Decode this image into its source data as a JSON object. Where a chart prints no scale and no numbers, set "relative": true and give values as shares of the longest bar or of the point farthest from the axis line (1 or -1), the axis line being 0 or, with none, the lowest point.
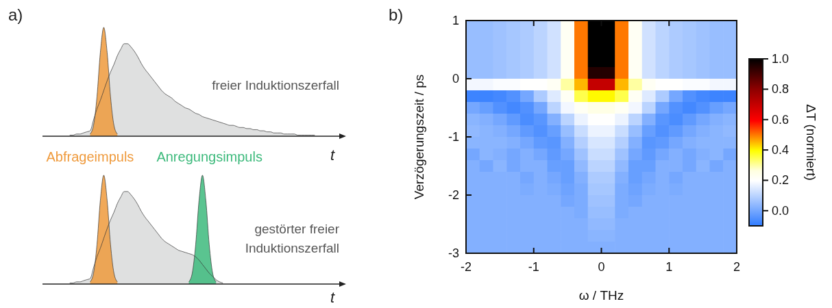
{
  "chart_data": [
    {
      "type": "area",
      "title": "a)",
      "xlabel": "t",
      "relative": true,
      "categories": [
        null,
        null,
        null,
        null,
        null,
        null,
        null,
        null,
        null,
        null,
        null,
        null,
        null,
        null,
        null,
        null,
        null,
        null,
        null,
        null,
        null,
        null,
        null,
        null,
        null,
        null,
        null,
        null,
        null,
        null,
        null,
        null,
        null,
        null,
        null,
        null,
        null,
        null,
        null,
        null,
        null,
        null,
        null,
        null,
        null,
        null,
        null,
        null,
        null,
        null,
        null,
        null,
        null,
        null,
        null,
        null,
        null,
        null,
        null,
        null,
        null,
        null,
        null,
        null,
        null,
        null,
        null,
        null,
        null,
        null,
        null,
        null,
        null,
        null,
        null,
        null,
        null,
        null,
        null,
        null,
        null,
        null,
        null,
        null,
        null,
        null,
        null,
        null,
        null
      ],
      "series": [
        {
          "color": "#d9dadb",
          "values": [
            null,
            null,
            null,
            null,
            null,
            null,
            null,
            null,
            0.01,
            0.01,
            0.02,
            0.02,
            0.03,
            0.04,
            0.05,
            0.15,
            0.25,
            0.33,
            0.42,
            0.51,
            0.59,
            0.66,
            0.74,
            0.8,
            0.85,
            0.85,
            0.82,
            0.78,
            0.73,
            0.67,
            0.62,
            0.58,
            0.54,
            0.5,
            0.46,
            0.42,
            0.39,
            0.37,
            0.35,
            0.32,
            0.3,
            0.28,
            0.26,
            0.25,
            0.23,
            0.21,
            0.2,
            0.18,
            0.17,
            0.16,
            0.15,
            0.14,
            0.13,
            0.12,
            0.11,
            0.1,
            0.1,
            0.09,
            0.08,
            0.08,
            0.07,
            0.07,
            0.06,
            0.06,
            0.05,
            0.05,
            0.04,
            0.04,
            0.03,
            0.03,
            0.03,
            0.02,
            0.02,
            0.02,
            0.02,
            0.01,
            0.01,
            0.01,
            0.01,
            0.01,
            0.01,
            null,
            null,
            null,
            null,
            null,
            null,
            null,
            null
          ]
        },
        {
          "name": "Abfrageimpuls",
          "color": "#ef9a3c",
          "values": [
            null,
            null,
            null,
            null,
            null,
            null,
            null,
            null,
            null,
            null,
            null,
            null,
            null,
            null,
            0.02,
            0.1,
            0.36,
            0.77,
            1,
            0.77,
            0.36,
            0.1,
            0.02,
            null,
            null,
            null,
            null,
            null,
            null,
            null,
            null,
            null,
            null,
            null,
            null,
            null,
            null,
            null,
            null,
            null,
            null,
            null,
            null,
            null,
            null,
            null,
            null,
            null,
            null,
            null,
            null,
            null,
            null,
            null,
            null,
            null,
            null,
            null,
            null,
            null,
            null,
            null,
            null,
            null,
            null,
            null,
            null,
            null,
            null,
            null,
            null,
            null,
            null,
            null,
            null,
            null,
            null,
            null,
            null,
            null,
            null,
            null,
            null,
            null,
            null,
            null,
            null,
            null,
            null
          ]
        }
      ],
      "annotations": [
        "freier Induktionszerfall"
      ]
    },
    {
      "type": "area",
      "xlabel": "t",
      "relative": true,
      "categories": [
        null,
        null,
        null,
        null,
        null,
        null,
        null,
        null,
        null,
        null,
        null,
        null,
        null,
        null,
        null,
        null,
        null,
        null,
        null,
        null,
        null,
        null,
        null,
        null,
        null,
        null,
        null,
        null,
        null,
        null,
        null,
        null,
        null,
        null,
        null,
        null,
        null,
        null,
        null,
        null,
        null,
        null,
        null,
        null,
        null,
        null,
        null,
        null,
        null,
        null,
        null,
        null,
        null,
        null,
        null,
        null,
        null,
        null,
        null,
        null,
        null,
        null,
        null,
        null,
        null,
        null,
        null,
        null,
        null,
        null,
        null,
        null,
        null,
        null,
        null,
        null,
        null,
        null,
        null,
        null,
        null,
        null,
        null,
        null,
        null,
        null,
        null,
        null,
        null
      ],
      "series": [
        {
          "color": "#d9dadb",
          "values": [
            null,
            null,
            null,
            null,
            null,
            null,
            null,
            null,
            0.01,
            0.01,
            0.02,
            0.02,
            0.03,
            0.04,
            0.05,
            0.15,
            0.25,
            0.33,
            0.42,
            0.51,
            0.59,
            0.66,
            0.74,
            0.8,
            0.85,
            0.85,
            0.82,
            0.78,
            0.73,
            0.67,
            0.62,
            0.58,
            0.54,
            0.5,
            0.46,
            0.42,
            0.39,
            0.37,
            0.35,
            0.33,
            0.31,
            0.3,
            0.29,
            0.28,
            0.27,
            0.25,
            0.22,
            0.18,
            0.14,
            0.1,
            0.07,
            0.04,
            0.02,
            0.01,
            null,
            null,
            null,
            null,
            null,
            null,
            null,
            null,
            null,
            null,
            null,
            null,
            null,
            null,
            null,
            null,
            null,
            null,
            null,
            null,
            null,
            null,
            null,
            null,
            null,
            null,
            null,
            null,
            null,
            null,
            null,
            null,
            null,
            null,
            null
          ]
        },
        {
          "color": "#ef9a3c",
          "values": [
            null,
            null,
            null,
            null,
            null,
            null,
            null,
            null,
            null,
            null,
            null,
            null,
            null,
            null,
            0.02,
            0.1,
            0.36,
            0.77,
            1,
            0.77,
            0.36,
            0.1,
            0.02,
            null,
            null,
            null,
            null,
            null,
            null,
            null,
            null,
            null,
            null,
            null,
            null,
            null,
            null,
            null,
            null,
            null,
            null,
            null,
            null,
            null,
            null,
            null,
            null,
            null,
            null,
            null,
            null,
            null,
            null,
            null,
            null,
            null,
            null,
            null,
            null,
            null,
            null,
            null,
            null,
            null,
            null,
            null,
            null,
            null,
            null,
            null,
            null,
            null,
            null,
            null,
            null,
            null,
            null,
            null,
            null,
            null,
            null,
            null,
            null,
            null,
            null,
            null,
            null,
            null,
            null
          ]
        },
        {
          "name": "Anregungsimpuls",
          "color": "#3dba7c",
          "values": [
            null,
            null,
            null,
            null,
            null,
            null,
            null,
            null,
            null,
            null,
            null,
            null,
            null,
            null,
            null,
            null,
            null,
            null,
            null,
            null,
            null,
            null,
            null,
            null,
            null,
            null,
            null,
            null,
            null,
            null,
            null,
            null,
            null,
            null,
            null,
            null,
            null,
            null,
            null,
            null,
            null,
            null,
            null,
            0.02,
            0.1,
            0.36,
            0.77,
            1,
            0.77,
            0.36,
            0.1,
            0.02,
            null,
            null,
            null,
            null,
            null,
            null,
            null,
            null,
            null,
            null,
            null,
            null,
            null,
            null,
            null,
            null,
            null,
            null,
            null,
            null,
            null,
            null,
            null,
            null,
            null,
            null,
            null,
            null,
            null,
            null,
            null,
            null,
            null,
            null,
            null,
            null,
            null
          ]
        }
      ],
      "annotations": [
        "gestörter freier\nInduktionszerfall"
      ]
    },
    {
      "type": "heatmap",
      "title": "b)",
      "xlabel": "ω / THz",
      "ylabel": "Verzögerungszeit / ps",
      "clabel": "ΔT (normiert)",
      "xlim": [
        -2,
        2
      ],
      "xticks": [
        -2,
        -1,
        0,
        1,
        2
      ],
      "ylim": [
        -3,
        1
      ],
      "yticks": [
        -3,
        -2,
        -1,
        0,
        1
      ],
      "clim": [
        -0.1,
        1.0
      ],
      "cticks": [
        {
          "value": 0,
          "label": "0.0"
        },
        {
          "value": 0.2,
          "label": "0.2"
        },
        {
          "value": 0.4,
          "label": "0.4"
        },
        {
          "value": 0.6,
          "label": "0.6"
        },
        {
          "value": 0.8,
          "label": "0.8"
        },
        {
          "value": 1,
          "label": "1.0"
        }
      ],
      "cells": [
        [
          0.05,
          0.05,
          0.06,
          0.07,
          0.08,
          0.1,
          0.13,
          0.22,
          0.5,
          1.0,
          1.0,
          0.5,
          0.22,
          0.13,
          0.1,
          0.08,
          0.07,
          0.06,
          0.05,
          0.05
        ],
        [
          0.05,
          0.05,
          0.06,
          0.07,
          0.08,
          0.1,
          0.13,
          0.22,
          0.5,
          1.0,
          1.0,
          0.5,
          0.22,
          0.13,
          0.1,
          0.08,
          0.07,
          0.06,
          0.05,
          0.05
        ],
        [
          0.05,
          0.05,
          0.06,
          0.07,
          0.08,
          0.1,
          0.13,
          0.22,
          0.5,
          1.0,
          1.0,
          0.5,
          0.22,
          0.13,
          0.1,
          0.08,
          0.07,
          0.06,
          0.05,
          0.05
        ],
        [
          0.05,
          0.05,
          0.06,
          0.07,
          0.08,
          0.1,
          0.13,
          0.22,
          0.5,
          1.0,
          1.0,
          0.5,
          0.22,
          0.13,
          0.1,
          0.08,
          0.07,
          0.06,
          0.05,
          0.05
        ],
        [
          0.05,
          0.05,
          0.06,
          0.07,
          0.08,
          0.1,
          0.13,
          0.22,
          0.5,
          0.95,
          0.95,
          0.5,
          0.22,
          0.13,
          0.1,
          0.08,
          0.07,
          0.06,
          0.05,
          0.05
        ],
        [
          0.18,
          0.18,
          0.19,
          0.19,
          0.2,
          0.2,
          0.22,
          0.3,
          0.45,
          0.7,
          0.7,
          0.45,
          0.3,
          0.22,
          0.2,
          0.2,
          0.19,
          0.19,
          0.18,
          0.18
        ],
        [
          -0.08,
          -0.08,
          -0.07,
          -0.05,
          0.0,
          0.08,
          0.15,
          0.22,
          0.35,
          0.4,
          0.4,
          0.35,
          0.22,
          0.15,
          0.08,
          0.0,
          -0.05,
          -0.07,
          -0.08,
          -0.08
        ],
        [
          0.0,
          -0.02,
          -0.05,
          -0.07,
          -0.05,
          0.0,
          0.1,
          0.18,
          0.22,
          0.25,
          0.25,
          0.22,
          0.18,
          0.1,
          0.0,
          -0.05,
          -0.07,
          -0.05,
          -0.02,
          0.0
        ],
        [
          0.03,
          0.02,
          0.0,
          -0.03,
          -0.06,
          -0.04,
          0.02,
          0.1,
          0.17,
          0.2,
          0.2,
          0.17,
          0.1,
          0.02,
          -0.04,
          -0.06,
          -0.03,
          0.0,
          0.02,
          0.03
        ],
        [
          0.04,
          0.03,
          0.02,
          0.0,
          -0.03,
          -0.05,
          -0.02,
          0.05,
          0.12,
          0.17,
          0.17,
          0.12,
          0.05,
          -0.02,
          -0.05,
          -0.03,
          0.0,
          0.02,
          0.03,
          0.04
        ],
        [
          0.03,
          0.03,
          0.03,
          0.02,
          0.0,
          -0.03,
          -0.04,
          0.02,
          0.09,
          0.14,
          0.14,
          0.09,
          0.02,
          -0.04,
          -0.03,
          0.0,
          0.02,
          0.03,
          0.03,
          0.03
        ],
        [
          0.0,
          0.03,
          0.02,
          0.0,
          0.02,
          0.0,
          -0.03,
          0.0,
          0.06,
          0.12,
          0.12,
          0.06,
          0.0,
          -0.03,
          0.0,
          0.02,
          0.0,
          0.02,
          0.03,
          0.0
        ],
        [
          0.02,
          0.0,
          0.03,
          0.0,
          0.02,
          0.02,
          -0.02,
          -0.02,
          0.04,
          0.1,
          0.1,
          0.04,
          -0.02,
          -0.02,
          0.02,
          0.02,
          0.0,
          0.03,
          0.0,
          0.02
        ],
        [
          0.02,
          0.02,
          0.02,
          0.02,
          0.0,
          0.02,
          0.0,
          -0.02,
          0.02,
          0.08,
          0.08,
          0.02,
          -0.02,
          0.0,
          0.02,
          0.0,
          0.02,
          0.02,
          0.02,
          0.02
        ],
        [
          0.02,
          0.02,
          0.02,
          0.02,
          0.01,
          0.02,
          0.01,
          -0.01,
          0.01,
          0.07,
          0.07,
          0.01,
          -0.01,
          0.01,
          0.02,
          0.01,
          0.02,
          0.02,
          0.02,
          0.02
        ],
        [
          0.02,
          0.02,
          0.02,
          0.02,
          0.02,
          0.02,
          0.02,
          0.0,
          0.01,
          0.06,
          0.06,
          0.01,
          0.0,
          0.02,
          0.02,
          0.02,
          0.02,
          0.02,
          0.02,
          0.02
        ],
        [
          0.02,
          0.02,
          0.02,
          0.02,
          0.02,
          0.02,
          0.02,
          0.02,
          0.01,
          0.05,
          0.05,
          0.01,
          0.02,
          0.02,
          0.02,
          0.02,
          0.02,
          0.02,
          0.02,
          0.02
        ],
        [
          0.02,
          0.02,
          0.02,
          0.02,
          0.02,
          0.02,
          0.02,
          0.02,
          0.02,
          0.04,
          0.04,
          0.02,
          0.02,
          0.02,
          0.02,
          0.02,
          0.02,
          0.02,
          0.02,
          0.02
        ],
        [
          0.02,
          0.02,
          0.02,
          0.02,
          0.02,
          0.02,
          0.02,
          0.02,
          0.02,
          0.03,
          0.03,
          0.02,
          0.02,
          0.02,
          0.02,
          0.02,
          0.02,
          0.02,
          0.02,
          0.02
        ],
        [
          0.02,
          0.02,
          0.02,
          0.02,
          0.02,
          0.02,
          0.02,
          0.02,
          0.02,
          0.02,
          0.02,
          0.02,
          0.02,
          0.02,
          0.02,
          0.02,
          0.02,
          0.02,
          0.02,
          0.02
        ]
      ]
    }
  ]
}
